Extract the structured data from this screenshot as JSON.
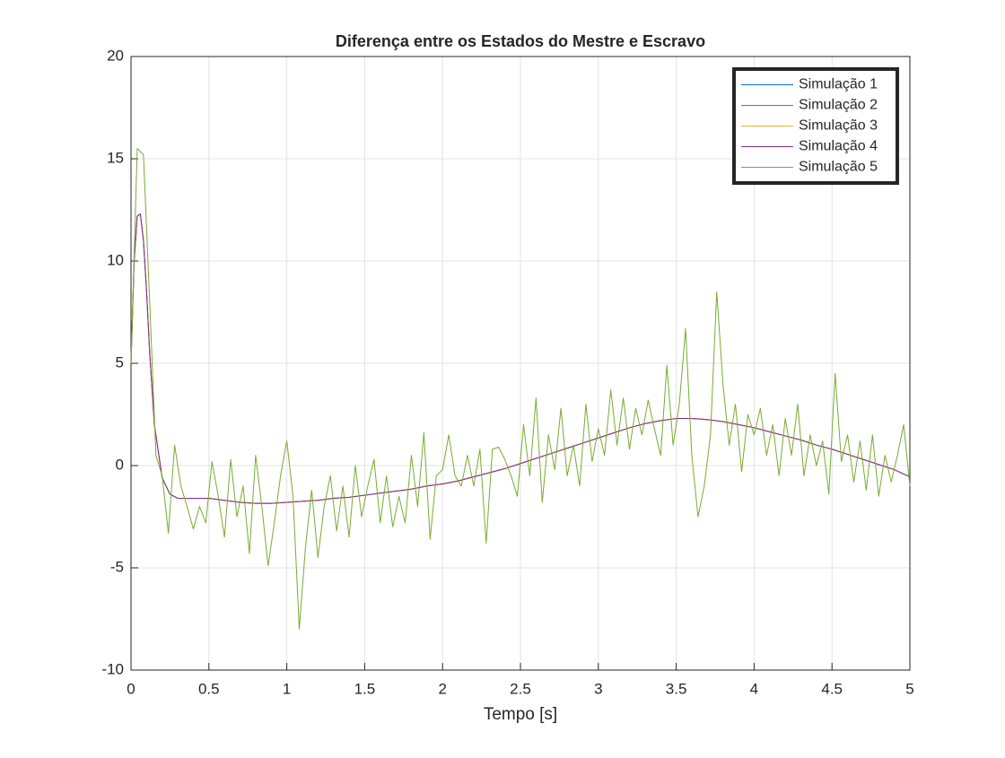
{
  "chart_data": {
    "type": "line",
    "title": "Diferença entre os Estados do Mestre e Escravo",
    "x_label": "Tempo [s]",
    "xlim": [
      0,
      5
    ],
    "xticks": [
      0,
      0.5,
      1,
      1.5,
      2,
      2.5,
      3,
      3.5,
      4,
      4.5,
      5
    ],
    "ylim": [
      -10,
      20
    ],
    "yticks": [
      -10,
      -5,
      0,
      5,
      10,
      15,
      20
    ],
    "grid": true,
    "legend": "top-right",
    "x": [
      0,
      0.02,
      0.04,
      0.06,
      0.08,
      0.1,
      0.12,
      0.15,
      0.2,
      0.25,
      0.3,
      0.4,
      0.5,
      0.6,
      0.7,
      0.8,
      0.9,
      1.0,
      1.1,
      1.2,
      1.3,
      1.4,
      1.5,
      1.6,
      1.7,
      1.8,
      1.9,
      2.0,
      2.1,
      2.2,
      2.3,
      2.4,
      2.5,
      2.6,
      2.7,
      2.8,
      2.9,
      3.0,
      3.1,
      3.2,
      3.3,
      3.4,
      3.5,
      3.6,
      3.7,
      3.8,
      3.9,
      4.0,
      4.1,
      4.2,
      4.3,
      4.4,
      4.5,
      4.6,
      4.7,
      4.8,
      4.9,
      5.0
    ],
    "series": [
      {
        "name": "Simulação 1",
        "color": "#0072BD",
        "values": [
          5,
          10,
          12.2,
          12.3,
          11,
          8.5,
          5.5,
          2,
          -0.6,
          -1.4,
          -1.6,
          -1.6,
          -1.6,
          -1.7,
          -1.8,
          -1.85,
          -1.85,
          -1.8,
          -1.75,
          -1.7,
          -1.6,
          -1.55,
          -1.45,
          -1.35,
          -1.25,
          -1.15,
          -1.0,
          -0.9,
          -0.75,
          -0.55,
          -0.35,
          -0.15,
          0.1,
          0.35,
          0.6,
          0.85,
          1.1,
          1.35,
          1.6,
          1.85,
          2.05,
          2.2,
          2.3,
          2.3,
          2.25,
          2.15,
          2.0,
          1.85,
          1.65,
          1.45,
          1.25,
          1.0,
          0.8,
          0.55,
          0.3,
          0.05,
          -0.2,
          -0.55
        ]
      },
      {
        "name": "Simulação 2",
        "color": "#D95319",
        "values": [
          5,
          10,
          12.2,
          12.3,
          11,
          8.5,
          5.5,
          2,
          -0.6,
          -1.4,
          -1.6,
          -1.6,
          -1.6,
          -1.7,
          -1.8,
          -1.85,
          -1.85,
          -1.8,
          -1.75,
          -1.7,
          -1.6,
          -1.55,
          -1.45,
          -1.35,
          -1.25,
          -1.15,
          -1.0,
          -0.9,
          -0.75,
          -0.55,
          -0.35,
          -0.15,
          0.1,
          0.35,
          0.6,
          0.85,
          1.1,
          1.35,
          1.6,
          1.85,
          2.05,
          2.2,
          2.3,
          2.3,
          2.25,
          2.15,
          2.0,
          1.85,
          1.65,
          1.45,
          1.25,
          1.0,
          0.8,
          0.55,
          0.3,
          0.05,
          -0.2,
          -0.55
        ]
      },
      {
        "name": "Simulação 3",
        "color": "#EDB120",
        "values": [
          5,
          10,
          12.2,
          12.3,
          11,
          8.5,
          5.5,
          2,
          -0.6,
          -1.4,
          -1.6,
          -1.6,
          -1.6,
          -1.7,
          -1.8,
          -1.85,
          -1.85,
          -1.8,
          -1.75,
          -1.7,
          -1.6,
          -1.55,
          -1.45,
          -1.35,
          -1.25,
          -1.15,
          -1.0,
          -0.9,
          -0.75,
          -0.55,
          -0.35,
          -0.15,
          0.1,
          0.35,
          0.6,
          0.85,
          1.1,
          1.35,
          1.6,
          1.85,
          2.05,
          2.2,
          2.3,
          2.3,
          2.25,
          2.15,
          2.0,
          1.85,
          1.65,
          1.45,
          1.25,
          1.0,
          0.8,
          0.55,
          0.3,
          0.05,
          -0.2,
          -0.55
        ]
      },
      {
        "name": "Simulação 4",
        "color": "#7E2F8E",
        "values": [
          5,
          10,
          12.2,
          12.3,
          11,
          8.5,
          5.5,
          2,
          -0.6,
          -1.4,
          -1.6,
          -1.6,
          -1.6,
          -1.7,
          -1.8,
          -1.85,
          -1.85,
          -1.8,
          -1.75,
          -1.7,
          -1.6,
          -1.55,
          -1.45,
          -1.35,
          -1.25,
          -1.15,
          -1.0,
          -0.9,
          -0.75,
          -0.55,
          -0.35,
          -0.15,
          0.1,
          0.35,
          0.6,
          0.85,
          1.1,
          1.35,
          1.6,
          1.85,
          2.05,
          2.2,
          2.3,
          2.3,
          2.25,
          2.15,
          2.0,
          1.85,
          1.65,
          1.45,
          1.25,
          1.0,
          0.8,
          0.55,
          0.3,
          0.05,
          -0.2,
          -0.55
        ]
      },
      {
        "name": "Simulação 5",
        "color": "#77AC30",
        "x": [
          0,
          0.04,
          0.08,
          0.12,
          0.16,
          0.2,
          0.24,
          0.28,
          0.32,
          0.36,
          0.4,
          0.44,
          0.48,
          0.52,
          0.56,
          0.6,
          0.64,
          0.68,
          0.72,
          0.76,
          0.8,
          0.84,
          0.88,
          0.92,
          0.96,
          1.0,
          1.04,
          1.08,
          1.12,
          1.16,
          1.2,
          1.24,
          1.28,
          1.32,
          1.36,
          1.4,
          1.44,
          1.48,
          1.52,
          1.56,
          1.6,
          1.64,
          1.68,
          1.72,
          1.76,
          1.8,
          1.84,
          1.88,
          1.92,
          1.96,
          2.0,
          2.04,
          2.08,
          2.12,
          2.16,
          2.2,
          2.24,
          2.28,
          2.32,
          2.36,
          2.4,
          2.44,
          2.48,
          2.52,
          2.56,
          2.6,
          2.64,
          2.68,
          2.72,
          2.76,
          2.8,
          2.84,
          2.88,
          2.92,
          2.96,
          3.0,
          3.04,
          3.08,
          3.12,
          3.16,
          3.2,
          3.24,
          3.28,
          3.32,
          3.36,
          3.4,
          3.44,
          3.48,
          3.52,
          3.56,
          3.6,
          3.64,
          3.68,
          3.72,
          3.76,
          3.8,
          3.84,
          3.88,
          3.92,
          3.96,
          4.0,
          4.04,
          4.08,
          4.12,
          4.16,
          4.2,
          4.24,
          4.28,
          4.32,
          4.36,
          4.4,
          4.44,
          4.48,
          4.52,
          4.56,
          4.6,
          4.64,
          4.68,
          4.72,
          4.76,
          4.8,
          4.84,
          4.88,
          4.92,
          4.96,
          5.0
        ],
        "values": [
          5,
          15.5,
          15.2,
          8,
          0.5,
          -0.5,
          -3.3,
          1,
          -1,
          -2,
          -3.1,
          -2,
          -2.8,
          0.2,
          -1.5,
          -3.5,
          0.3,
          -2.5,
          -1,
          -4.3,
          0.5,
          -2,
          -4.9,
          -2.8,
          -0.5,
          1.2,
          -1.5,
          -8,
          -4,
          -1.2,
          -4.5,
          -2,
          -0.5,
          -3.2,
          -1,
          -3.5,
          0,
          -2.5,
          -1,
          0.3,
          -2.8,
          -0.5,
          -3,
          -1.5,
          -2.8,
          0.5,
          -2,
          1.6,
          -3.6,
          -0.5,
          -0.2,
          1.5,
          -0.5,
          -1,
          0.5,
          -1,
          0.8,
          -3.8,
          0.8,
          0.9,
          0.3,
          -0.5,
          -1.5,
          2,
          -0.5,
          3.3,
          -1.8,
          1.5,
          -0.2,
          2.8,
          -0.5,
          1,
          -1,
          3,
          0.2,
          1.8,
          0.5,
          3.7,
          1,
          3.3,
          0.8,
          2.8,
          1.5,
          3.2,
          1.8,
          0.5,
          4.9,
          1,
          3,
          6.7,
          0.5,
          -2.5,
          -1,
          1.5,
          8.5,
          4,
          1,
          3,
          -0.3,
          2.5,
          1.5,
          2.8,
          0.5,
          2,
          -0.5,
          2.3,
          0.5,
          3,
          -0.5,
          1.5,
          0,
          1.2,
          -1.4,
          4.5,
          0.2,
          1.5,
          -0.8,
          1.2,
          -1.2,
          1.5,
          -1.5,
          0.5,
          -0.8,
          0.5,
          2,
          -1
        ]
      }
    ]
  }
}
